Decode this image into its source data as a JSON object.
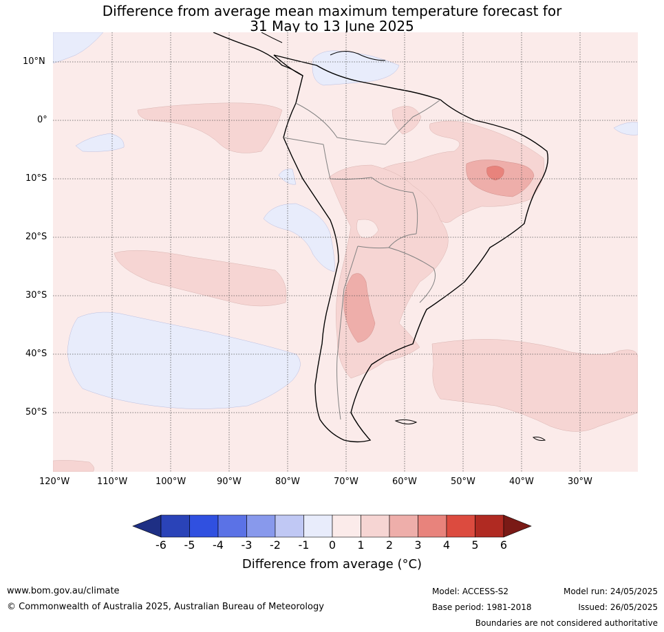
{
  "title_line1": "Difference from average mean maximum temperature forecast for",
  "title_line2": "31 May to 13 June 2025",
  "lat_labels": [
    "10°N",
    "0°",
    "10°S",
    "20°S",
    "30°S",
    "40°S",
    "50°S"
  ],
  "lon_labels": [
    "120°W",
    "110°W",
    "100°W",
    "90°W",
    "80°W",
    "70°W",
    "60°W",
    "50°W",
    "40°W",
    "30°W"
  ],
  "colorbar": {
    "ticks": [
      "-6",
      "-5",
      "-4",
      "-3",
      "-2",
      "-1",
      "0",
      "1",
      "2",
      "3",
      "4",
      "5",
      "6"
    ],
    "colors": [
      "#1e2f84",
      "#2a43b8",
      "#3050e0",
      "#5b72e6",
      "#8899ec",
      "#c0c8f4",
      "#e8ecfb",
      "#fbebea",
      "#f6d5d3",
      "#eeaeaa",
      "#e8837c",
      "#dc4b3f",
      "#b02a22",
      "#7a1a16"
    ],
    "label": "Difference from average (°C)"
  },
  "footer": {
    "website": "www.bom.gov.au/climate",
    "copyright": "© Commonwealth of Australia 2025, Australian Bureau of Meteorology",
    "model": "Model: ACCESS-S2",
    "base_period": "Base period: 1981-2018",
    "model_run": "Model run: 24/05/2025",
    "issued": "Issued: 26/05/2025",
    "disclaimer": "Boundaries are not considered authoritative"
  }
}
